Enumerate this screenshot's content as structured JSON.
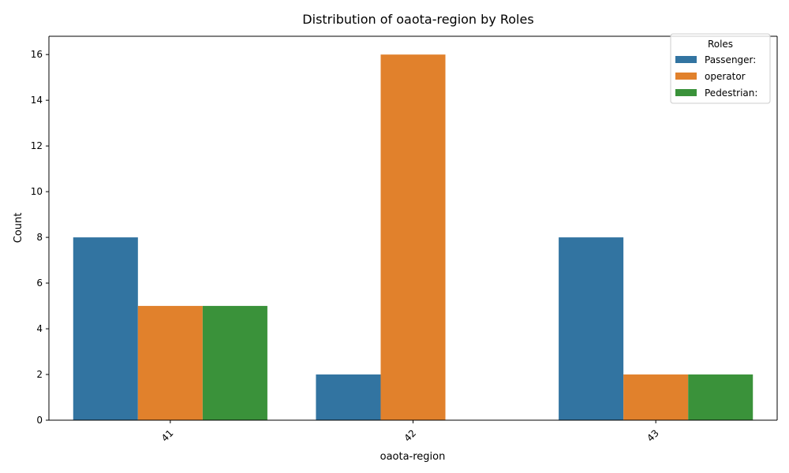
{
  "chart_data": {
    "type": "bar",
    "title": "Distribution of oaota-region by Roles",
    "xlabel": "oaota-region",
    "ylabel": "Count",
    "categories": [
      "41",
      "42",
      "43"
    ],
    "series": [
      {
        "name": "Passenger:",
        "color": "#3274a1",
        "values": [
          8,
          2,
          8
        ]
      },
      {
        "name": "operator",
        "color": "#e1812c",
        "values": [
          5,
          16,
          2
        ]
      },
      {
        "name": "Pedestrian:",
        "color": "#3a923a",
        "values": [
          5,
          0,
          2
        ]
      }
    ],
    "ylim": [
      0,
      16.8
    ],
    "yticks": [
      0,
      2,
      4,
      6,
      8,
      10,
      12,
      14,
      16
    ],
    "x_tick_rotation_deg": 45,
    "legend": {
      "title": "Roles",
      "position": "top-right"
    },
    "grid": false
  }
}
